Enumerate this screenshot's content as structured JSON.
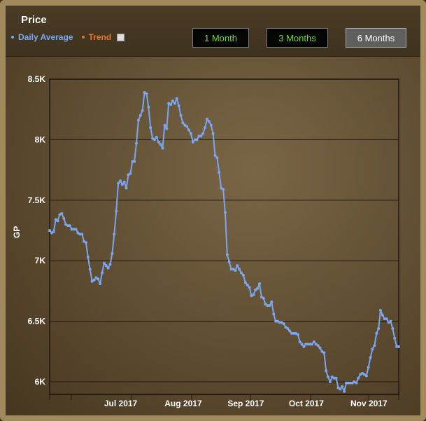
{
  "header": {
    "title": "Price"
  },
  "legend": {
    "average_label": "Daily Average",
    "trend_label": "Trend",
    "average_color": "#7aa6f0",
    "trend_color": "#e8742a"
  },
  "range_buttons": [
    {
      "label": "1 Month",
      "active": false
    },
    {
      "label": "3 Months",
      "active": false
    },
    {
      "label": "6 Months",
      "active": true
    }
  ],
  "chart_data": {
    "type": "line",
    "ylabel": "GP",
    "ylim": [
      5950,
      8500
    ],
    "y_ticks": [
      {
        "v": 6000,
        "label": "6K"
      },
      {
        "v": 6500,
        "label": "6.5K"
      },
      {
        "v": 7000,
        "label": "7K"
      },
      {
        "v": 7500,
        "label": "7.5K"
      },
      {
        "v": 8000,
        "label": "8K"
      },
      {
        "v": 8500,
        "label": "8.5K"
      }
    ],
    "x_ticks": [
      {
        "day": 30,
        "label": "Jul 2017"
      },
      {
        "day": 61,
        "label": "Aug 2017"
      },
      {
        "day": 92,
        "label": "Sep 2017"
      },
      {
        "day": 122,
        "label": "Oct 2017"
      },
      {
        "day": 153,
        "label": "Nov 2017"
      }
    ],
    "series": [
      {
        "name": "Daily Average",
        "color": "#7aa6f0",
        "values": [
          7250,
          7230,
          7240,
          7340,
          7330,
          7380,
          7390,
          7350,
          7300,
          7290,
          7290,
          7260,
          7260,
          7260,
          7230,
          7220,
          7220,
          7160,
          7150,
          7030,
          6930,
          6830,
          6840,
          6860,
          6850,
          6810,
          6900,
          6980,
          6960,
          6940,
          6970,
          7060,
          7220,
          7410,
          7640,
          7660,
          7630,
          7650,
          7600,
          7710,
          7720,
          7820,
          7820,
          7970,
          8160,
          8200,
          8240,
          8390,
          8380,
          8270,
          8100,
          8010,
          8000,
          8020,
          7980,
          7960,
          7930,
          8120,
          8090,
          8300,
          8290,
          8320,
          8300,
          8340,
          8280,
          8200,
          8140,
          8120,
          8110,
          8080,
          8050,
          7980,
          8000,
          8000,
          8030,
          8030,
          8050,
          8100,
          8170,
          8150,
          8120,
          8050,
          7870,
          7850,
          7730,
          7600,
          7590,
          7400,
          7050,
          6990,
          6930,
          6930,
          6920,
          6960,
          6930,
          6900,
          6880,
          6820,
          6800,
          6780,
          6710,
          6720,
          6760,
          6770,
          6810,
          6700,
          6690,
          6640,
          6630,
          6630,
          6660,
          6560,
          6500,
          6500,
          6490,
          6490,
          6480,
          6450,
          6440,
          6420,
          6400,
          6400,
          6400,
          6390,
          6330,
          6310,
          6290,
          6310,
          6310,
          6310,
          6310,
          6330,
          6310,
          6300,
          6280,
          6250,
          6240,
          6090,
          6040,
          6000,
          6040,
          6030,
          6030,
          5950,
          5940,
          5960,
          5920,
          5990,
          5990,
          5990,
          5990,
          6000,
          5990,
          6030,
          6060,
          6070,
          6060,
          6050,
          6120,
          6200,
          6270,
          6300,
          6400,
          6440,
          6590,
          6550,
          6520,
          6520,
          6490,
          6500,
          6440,
          6360,
          6290,
          6290
        ]
      }
    ]
  }
}
